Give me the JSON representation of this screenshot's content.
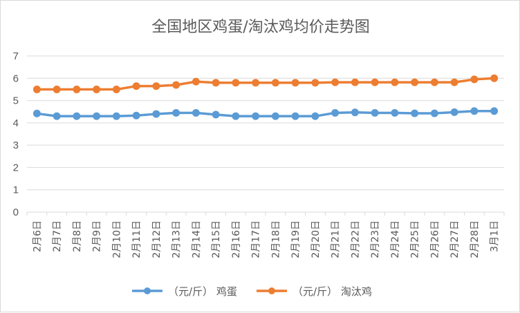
{
  "chart_data": {
    "type": "line",
    "title": "全国地区鸡蛋/淘汰鸡均价走势图",
    "categories": [
      "2月6日",
      "2月7日",
      "2月8日",
      "2月9日",
      "2月10日",
      "2月11日",
      "2月12日",
      "2月13日",
      "2月14日",
      "2月15日",
      "2月16日",
      "2月17日",
      "2月18日",
      "2月19日",
      "2月20日",
      "2月21日",
      "2月22日",
      "2月23日",
      "2月24日",
      "2月25日",
      "2月26日",
      "2月27日",
      "2月28日",
      "3月1日"
    ],
    "ylim": [
      0,
      7
    ],
    "yticks": [
      "0",
      "1",
      "2",
      "3",
      "4",
      "5",
      "6",
      "7"
    ],
    "grid": true,
    "legend_position": "bottom",
    "series": [
      {
        "name": "（元/斤） 鸡蛋",
        "color": "#5b9bd5",
        "values": [
          4.42,
          4.3,
          4.3,
          4.3,
          4.3,
          4.33,
          4.4,
          4.45,
          4.45,
          4.37,
          4.3,
          4.3,
          4.3,
          4.3,
          4.3,
          4.45,
          4.47,
          4.45,
          4.45,
          4.43,
          4.43,
          4.48,
          4.53,
          4.53
        ]
      },
      {
        "name": "（元/斤） 淘汰鸡",
        "color": "#ed7d31",
        "values": [
          5.5,
          5.5,
          5.5,
          5.5,
          5.5,
          5.65,
          5.65,
          5.7,
          5.85,
          5.8,
          5.8,
          5.8,
          5.8,
          5.8,
          5.8,
          5.82,
          5.82,
          5.82,
          5.82,
          5.82,
          5.82,
          5.82,
          5.95,
          6.0
        ]
      }
    ]
  }
}
